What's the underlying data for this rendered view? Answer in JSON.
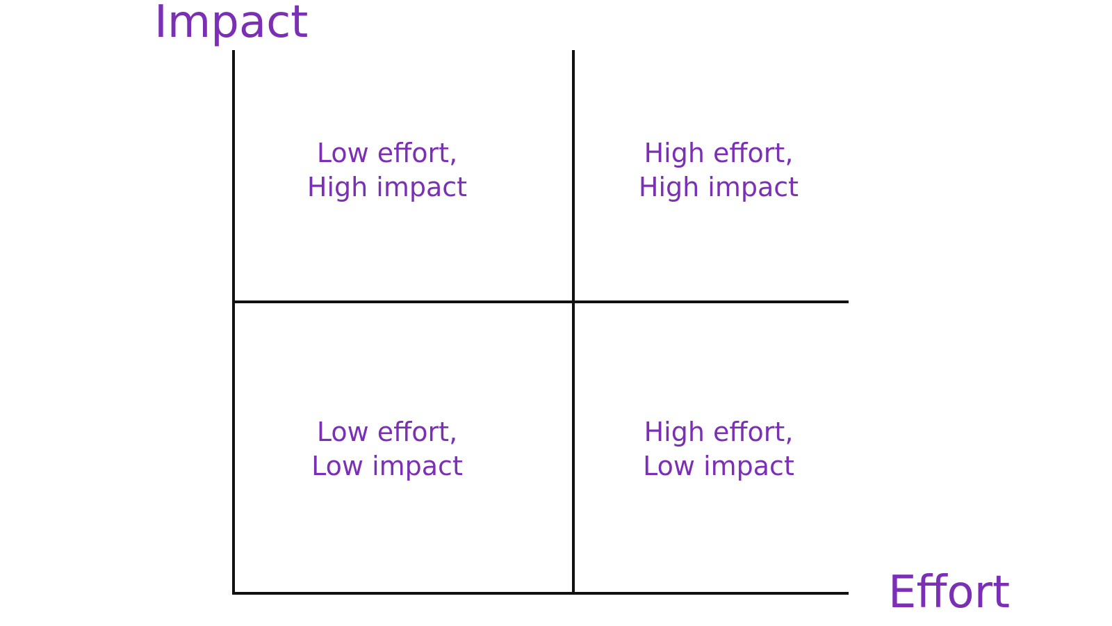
{
  "axes": {
    "y_label": "Impact",
    "x_label": "Effort"
  },
  "quadrants": [
    {
      "line1": "Low effort,",
      "line2": "High impact"
    },
    {
      "line1": "High effort,",
      "line2": "High impact"
    },
    {
      "line1": "Low effort,",
      "line2": "Low impact"
    },
    {
      "line1": "High effort,",
      "line2": "Low impact"
    }
  ],
  "colors": {
    "text": "#7b2fb5",
    "lines": "#111111",
    "background": "#ffffff"
  }
}
